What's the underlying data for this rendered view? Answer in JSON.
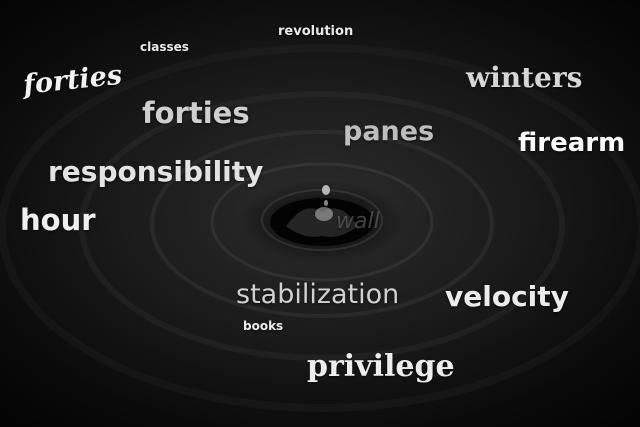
{
  "scene": {
    "description_icon": "water-ripple-drop-icon"
  },
  "words": {
    "revolution": "revolution",
    "classes": "classes",
    "forties_script": "forties",
    "forties": "forties",
    "winters": "winters",
    "panes": "panes",
    "firearm": "firearm",
    "responsibility": "responsibility",
    "hour": "hour",
    "wall": "wall",
    "stabilization": "stabilization",
    "velocity": "velocity",
    "books": "books",
    "privilege": "privilege"
  }
}
